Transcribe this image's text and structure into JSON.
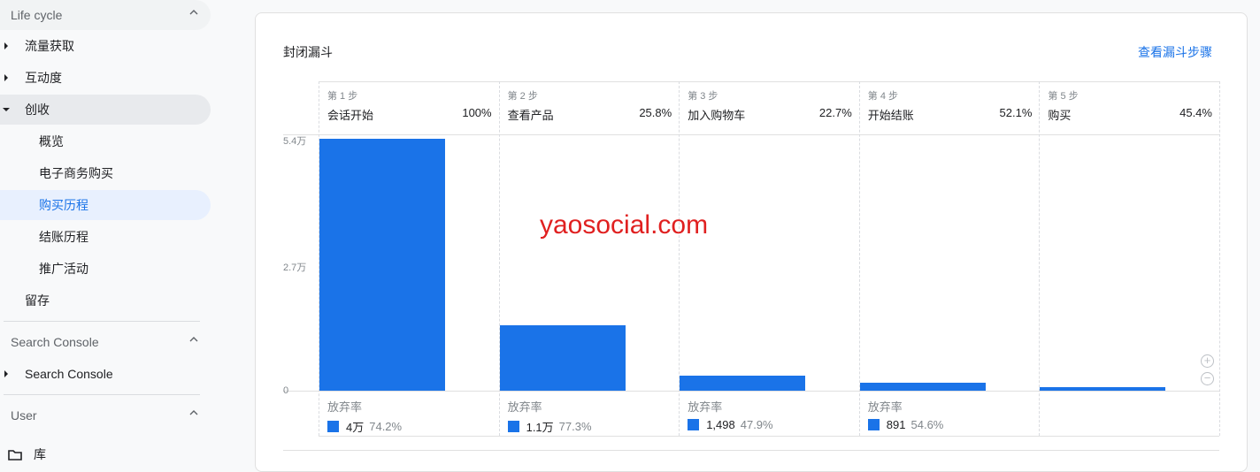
{
  "sidebar": {
    "sections": [
      {
        "title": "Life cycle"
      },
      {
        "title": "Search Console"
      },
      {
        "title": "User"
      }
    ],
    "items": [
      {
        "label": "流量获取"
      },
      {
        "label": "互动度"
      },
      {
        "label": "创收"
      },
      {
        "label": "概览"
      },
      {
        "label": "电子商务购买"
      },
      {
        "label": "购买历程"
      },
      {
        "label": "结账历程"
      },
      {
        "label": "推广活动"
      },
      {
        "label": "留存"
      },
      {
        "label": "Search Console"
      },
      {
        "label": "库"
      }
    ],
    "active": "购买历程"
  },
  "card": {
    "title": "封闭漏斗",
    "link": "查看漏斗步骤"
  },
  "watermark": "yaosocial.com",
  "colors": {
    "bar": "#1a73e8",
    "active": "#1a73e8"
  },
  "chart_data": {
    "type": "bar",
    "yticks": [
      "5.4万",
      "2.7万",
      "0"
    ],
    "ylim": [
      0,
      54000
    ],
    "steps": [
      {
        "step": "第 1 步",
        "name": "会话开始",
        "pct": "100%",
        "value": 54000,
        "abandon_label": "放弃率",
        "abandon_count": "4万",
        "abandon_rate": "74.2%"
      },
      {
        "step": "第 2 步",
        "name": "查看产品",
        "pct": "25.8%",
        "value": 13930,
        "abandon_label": "放弃率",
        "abandon_count": "1.1万",
        "abandon_rate": "77.3%"
      },
      {
        "step": "第 3 步",
        "name": "加入购物车",
        "pct": "22.7%",
        "value": 3160,
        "abandon_label": "放弃率",
        "abandon_count": "1,498",
        "abandon_rate": "47.9%"
      },
      {
        "step": "第 4 步",
        "name": "开始结账",
        "pct": "52.1%",
        "value": 1650,
        "abandon_label": "放弃率",
        "abandon_count": "891",
        "abandon_rate": "54.6%"
      },
      {
        "step": "第 5 步",
        "name": "购买",
        "pct": "45.4%",
        "value": 750
      }
    ]
  }
}
